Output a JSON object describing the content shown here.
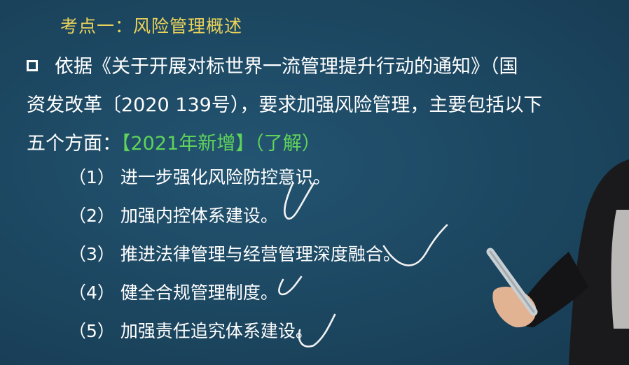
{
  "slide": {
    "title": "考点一：风险管理概述",
    "intro_line1": "依据《关于开展对标世界一流管理提升行动的通知》（国",
    "intro_line2": "资发改革〔2020 139号），要求加强风险管理，主要包括以下",
    "intro_line3_prefix": "五个方面：",
    "intro_line3_highlight": "【2021年新增】（了解）",
    "items": [
      {
        "num": "（1）",
        "text": "进一步强化风险防控意识。"
      },
      {
        "num": "（2）",
        "text": "加强内控体系建设。"
      },
      {
        "num": "（3）",
        "text": "推进法律管理与经营管理深度融合。"
      },
      {
        "num": "（4）",
        "text": "健全合规管理制度。"
      },
      {
        "num": "（5）",
        "text": "加强责任追究体系建设。"
      }
    ]
  },
  "colors": {
    "background": "#1c4660",
    "title": "#e9d25a",
    "text": "#ffffff",
    "highlight": "#5fd35a",
    "annotation": "#f2f2f2"
  },
  "icons": {
    "bullet": "square-bullet-icon"
  }
}
